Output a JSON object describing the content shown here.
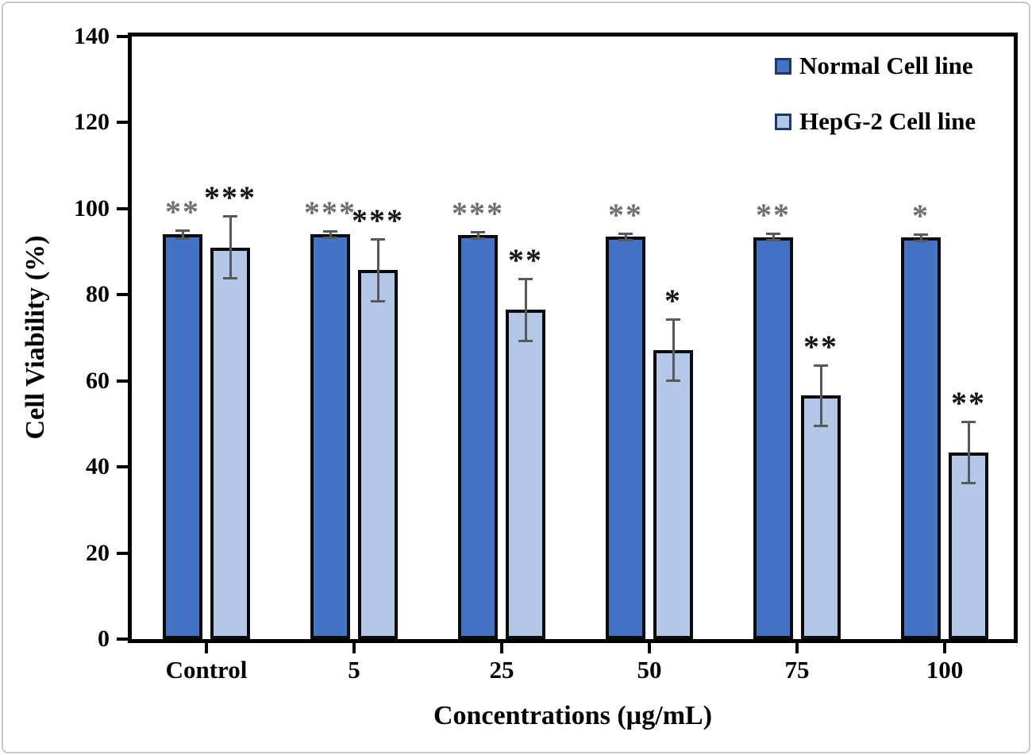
{
  "figure": {
    "ylabel": "Cell Viability (%)",
    "xlabel": "Concentrations (µg/mL)"
  },
  "chart_data": {
    "type": "bar",
    "title": "",
    "xlabel": "Concentrations (µg/mL)",
    "ylabel": "Cell Viability (%)",
    "categories": [
      "Control",
      "5",
      "25",
      "50",
      "75",
      "100"
    ],
    "ylim": [
      0,
      140
    ],
    "yticks": [
      0,
      20,
      40,
      60,
      80,
      100,
      120,
      140
    ],
    "grid": false,
    "legend_position": "top-right-inside",
    "series": [
      {
        "name": "Normal Cell line",
        "color": "#4472C4",
        "values": [
          94,
          94,
          93.8,
          93.5,
          93.4,
          93.3
        ],
        "errors": [
          1.2,
          1,
          1,
          1,
          1,
          1
        ],
        "significance": [
          "**",
          "***",
          "***",
          "**",
          "**",
          "*"
        ],
        "significance_color": "#6f6f6f"
      },
      {
        "name": "HepG-2 Cell line",
        "color": "#B4C7E7",
        "values": [
          91,
          85.7,
          76.5,
          67.2,
          56.6,
          43.3
        ],
        "errors": [
          7.5,
          7.5,
          7.5,
          7.4,
          7.3,
          7.4
        ],
        "significance": [
          "***",
          "***",
          "**",
          "*",
          "**",
          "**"
        ],
        "significance_color": "#141414"
      }
    ],
    "error_bar_color": "#595959",
    "bar_border_color": "#0b0b0b",
    "legend_marker_border": "#1F3864"
  }
}
